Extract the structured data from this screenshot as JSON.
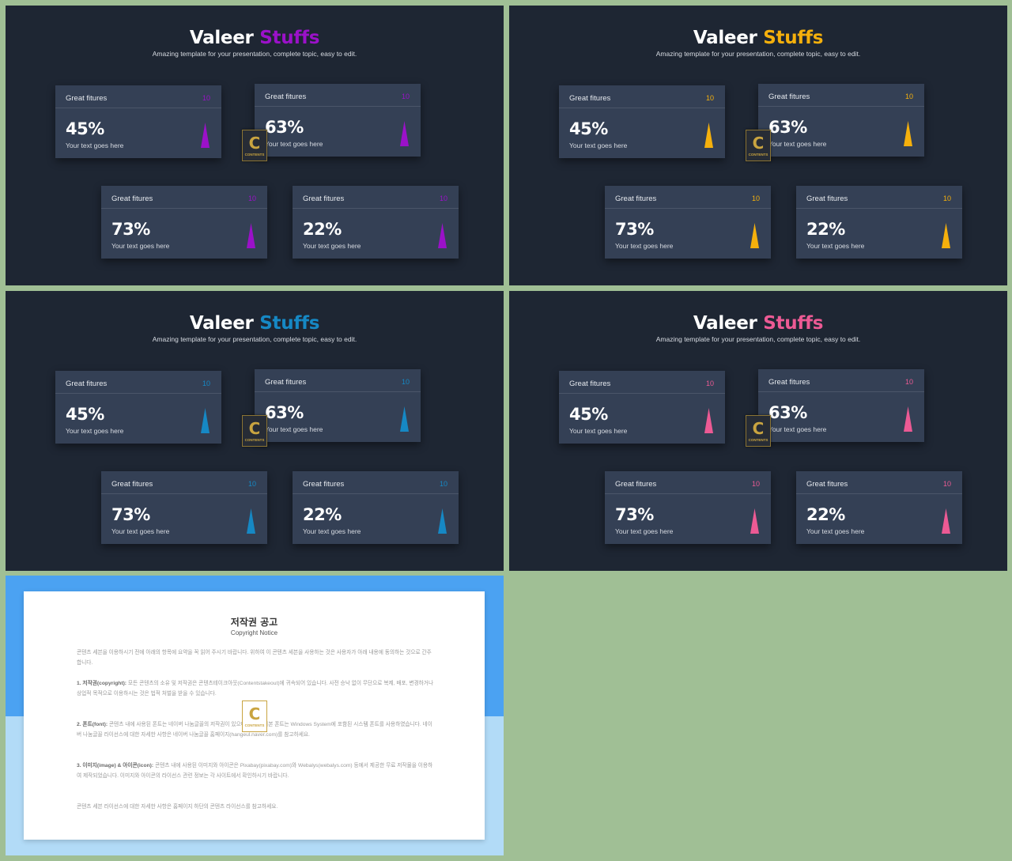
{
  "slides": [
    {
      "title_main": "Valeer",
      "title_accent": "Stuffs",
      "subtitle": "Amazing template for your presentation, complete topic, easy to edit.",
      "accent_color": "#9b11c9",
      "cards": [
        {
          "title": "Great fitures",
          "number": "10",
          "percent": "45%",
          "text": "Your text goes here"
        },
        {
          "title": "Great fitures",
          "number": "10",
          "percent": "63%",
          "text": "Your text goes here"
        },
        {
          "title": "Great fitures",
          "number": "10",
          "percent": "73%",
          "text": "Your text goes here"
        },
        {
          "title": "Great fitures",
          "number": "10",
          "percent": "22%",
          "text": "Your text goes here"
        }
      ]
    },
    {
      "title_main": "Valeer",
      "title_accent": "Stuffs",
      "subtitle": "Amazing template for your presentation, complete topic, easy to edit.",
      "accent_color": "#f5b00c",
      "cards": [
        {
          "title": "Great fitures",
          "number": "10",
          "percent": "45%",
          "text": "Your text goes here"
        },
        {
          "title": "Great fitures",
          "number": "10",
          "percent": "63%",
          "text": "Your text goes here"
        },
        {
          "title": "Great fitures",
          "number": "10",
          "percent": "73%",
          "text": "Your text goes here"
        },
        {
          "title": "Great fitures",
          "number": "10",
          "percent": "22%",
          "text": "Your text goes here"
        }
      ]
    },
    {
      "title_main": "Valeer",
      "title_accent": "Stuffs",
      "subtitle": "Amazing template for your presentation, complete topic, easy to edit.",
      "accent_color": "#1688c4",
      "cards": [
        {
          "title": "Great fitures",
          "number": "10",
          "percent": "45%",
          "text": "Your text goes here"
        },
        {
          "title": "Great fitures",
          "number": "10",
          "percent": "63%",
          "text": "Your text goes here"
        },
        {
          "title": "Great fitures",
          "number": "10",
          "percent": "73%",
          "text": "Your text goes here"
        },
        {
          "title": "Great fitures",
          "number": "10",
          "percent": "22%",
          "text": "Your text goes here"
        }
      ]
    },
    {
      "title_main": "Valeer",
      "title_accent": "Stuffs",
      "subtitle": "Amazing template for your presentation, complete topic, easy to edit.",
      "accent_color": "#ec5a94",
      "cards": [
        {
          "title": "Great fitures",
          "number": "10",
          "percent": "45%",
          "text": "Your text goes here"
        },
        {
          "title": "Great fitures",
          "number": "10",
          "percent": "63%",
          "text": "Your text goes here"
        },
        {
          "title": "Great fitures",
          "number": "10",
          "percent": "73%",
          "text": "Your text goes here"
        },
        {
          "title": "Great fitures",
          "number": "10",
          "percent": "22%",
          "text": "Your text goes here"
        }
      ]
    }
  ],
  "badge": {
    "letter": "C",
    "text": "CONTENTS"
  },
  "notice": {
    "title": "저작권 공고",
    "subtitle": "Copyright Notice",
    "intro": "콘텐츠 세븐을 이용하시기 전에 아래의 항목에 요약을 꼭 읽어 주시기 바랍니다. 위하여 이 콘텐츠 세븐을 사용하는 것은 사용자가 아래 내용에 동의하는 것으로 간주합니다.",
    "p1_label": "1. 저작권(copyright):",
    "p1": "모든 콘텐츠의 소유 및 저작권은 콘텐츠테이크아웃(Contentstakeout)에 귀속되어 있습니다. 사전 승낙 없이 무단으로 복제, 배포, 변경하거나 상업적 목적으로 이용하시는 것은 법적 처벌을 받을 수 있습니다.",
    "p2_label": "2. 폰트(font):",
    "p2": "콘텐츠 내에 사용된 폰트는 네이버 나눔글꼴의 저작권이 있으며 윈도우 기본 폰트는 Windows System에 포함된 시스템 폰트를 사용하였습니다. 네이버 나눔글꼴 라이선스에 대한 자세한 사항은 네이버 나눔글꼴 홈페이지(hangeul.naver.com)를 참고하세요.",
    "p3_label": "3. 이미지(image) & 아이콘(icon):",
    "p3": "콘텐츠 내에 사용된 이미지와 아이콘은 Pixabay(pixabay.com)와 Webalys(webalys.com) 등에서 제공한 무료 저작물을 이용하여 제작되었습니다. 이미지와 아이콘의 라이선스 관련 정보는 각 사이트에서 확인하시기 바랍니다.",
    "outro": "콘텐츠 세븐 라이선스에 대한 자세한 사항은 홈페이지 하단의 콘텐츠 라이선스를 참고하세요."
  }
}
